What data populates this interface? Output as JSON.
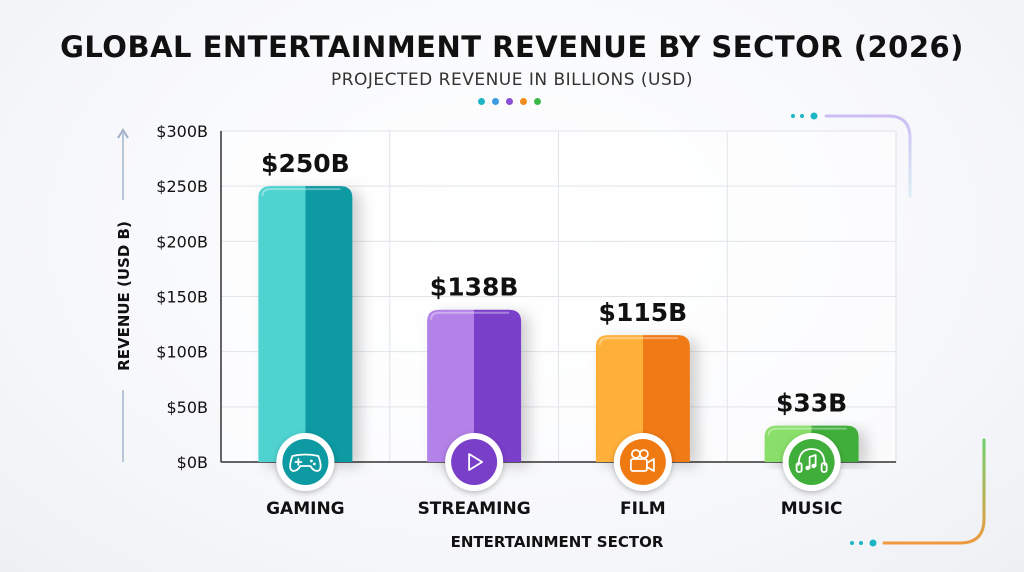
{
  "chart_data": {
    "type": "bar",
    "title": "GLOBAL ENTERTAINMENT REVENUE BY SECTOR (2026)",
    "subtitle": "PROJECTED REVENUE IN BILLIONS (USD)",
    "xlabel": "ENTERTAINMENT SECTOR",
    "ylabel": "REVENUE (USD B)",
    "ylim": [
      0,
      300
    ],
    "yticks": [
      0,
      50,
      100,
      150,
      200,
      250,
      300
    ],
    "ytick_labels": [
      "$0B",
      "$50B",
      "$100B",
      "$150B",
      "$200B",
      "$250B",
      "$300B"
    ],
    "categories": [
      "GAMING",
      "STREAMING",
      "FILM",
      "MUSIC"
    ],
    "values": [
      250,
      138,
      115,
      33
    ],
    "data_labels": [
      "$250B",
      "$138B",
      "$115B",
      "$33B"
    ],
    "icons": [
      "gamepad-icon",
      "play-icon",
      "film-camera-icon",
      "music-note-icon"
    ],
    "colors": [
      {
        "light": "#4fd3d0",
        "dark": "#0e9aa2"
      },
      {
        "light": "#b382e8",
        "dark": "#7a3fc9"
      },
      {
        "light": "#ffb03a",
        "dark": "#f07a12"
      },
      {
        "light": "#8adf6a",
        "dark": "#3fae3a"
      }
    ],
    "grid": true
  },
  "decor_dot_colors": [
    "#1bb5c3",
    "#3b9be0",
    "#8a4fd4",
    "#f28c1e",
    "#3db94b"
  ]
}
